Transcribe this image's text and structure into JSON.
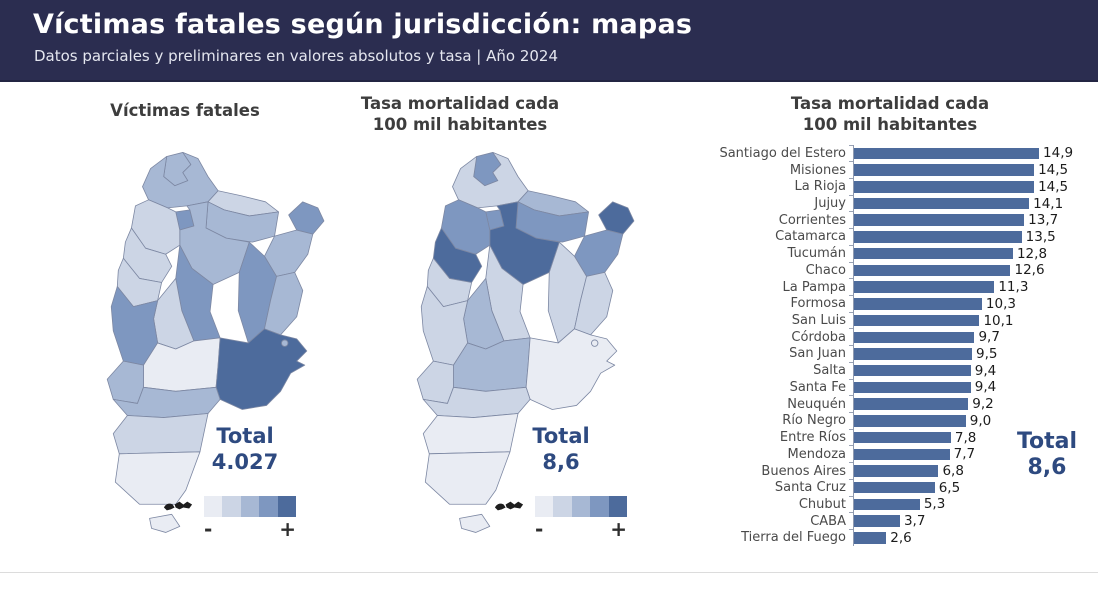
{
  "header": {
    "title": "Víctimas fatales según jurisdicción: mapas",
    "subtitle": "Datos parciales y preliminares en valores absolutos y tasa | Año 2024"
  },
  "colors": {
    "header_bg": "#2b2d50",
    "total_text": "#2e4a80",
    "bar_fill": "#4d6b9c",
    "choropleth_palette": [
      "#e9ecf3",
      "#ccd5e5",
      "#a7b8d4",
      "#7e97c0",
      "#4d6b9c"
    ]
  },
  "panel_map_absolute": {
    "title": "Víctimas fatales",
    "total_label": "Total",
    "total_value": "4.027",
    "legend_minus": "-",
    "legend_plus": "+"
  },
  "panel_map_rate": {
    "title_line1": "Tasa mortalidad cada",
    "title_line2": "100 mil habitantes",
    "total_label": "Total",
    "total_value": "8,6",
    "legend_minus": "-",
    "legend_plus": "+"
  },
  "panel_bars": {
    "title_line1": "Tasa mortalidad cada",
    "title_line2": "100 mil habitantes",
    "total_label": "Total",
    "total_value": "8,6"
  },
  "chart_data": [
    {
      "type": "heatmap",
      "subtype": "choropleth-map",
      "region": "Argentina (24 jurisdicciones)",
      "title": "Víctimas fatales",
      "unit": "valores absolutos",
      "total": 4027,
      "legend": "escala de color de - (claro) a + (oscuro), 5 niveles",
      "shade_levels_1to5": {
        "Jujuy": 3,
        "Salta": 3,
        "Formosa": 2,
        "Chaco": 3,
        "Misiones": 4,
        "Corrientes": 3,
        "Tucumán": 4,
        "Santiago del Estero": 3,
        "Catamarca": 2,
        "La Rioja": 2,
        "San Juan": 2,
        "Córdoba": 4,
        "Santa Fe": 4,
        "Entre Ríos": 3,
        "San Luis": 2,
        "Mendoza": 4,
        "La Pampa": 1,
        "Buenos Aires": 5,
        "CABA": 3,
        "Neuquén": 3,
        "Río Negro": 3,
        "Chubut": 2,
        "Santa Cruz": 1,
        "Tierra del Fuego": 1
      }
    },
    {
      "type": "heatmap",
      "subtype": "choropleth-map",
      "region": "Argentina (24 jurisdicciones)",
      "title": "Tasa mortalidad cada 100 mil habitantes",
      "unit": "tasa cada 100 mil habitantes",
      "total": 8.6,
      "legend": "escala de color de - (claro) a + (oscuro), 5 niveles",
      "shade_levels_1to5": {
        "Jujuy": 4,
        "Salta": 2,
        "Formosa": 3,
        "Chaco": 4,
        "Misiones": 5,
        "Corrientes": 4,
        "Tucumán": 4,
        "Santiago del Estero": 5,
        "Catamarca": 4,
        "La Rioja": 5,
        "San Juan": 2,
        "Córdoba": 2,
        "Santa Fe": 2,
        "Entre Ríos": 2,
        "San Luis": 3,
        "Mendoza": 2,
        "La Pampa": 3,
        "Buenos Aires": 1,
        "CABA": 1,
        "Neuquén": 2,
        "Río Negro": 2,
        "Chubut": 1,
        "Santa Cruz": 1,
        "Tierra del Fuego": 1
      }
    },
    {
      "type": "bar",
      "orientation": "horizontal",
      "title": "Tasa mortalidad cada 100 mil habitantes",
      "xlabel": "",
      "ylabel": "",
      "xlim": [
        0,
        15
      ],
      "grid": false,
      "total_label": "Total",
      "total_value": "8,6",
      "categories": [
        "Santiago del Estero",
        "Misiones",
        "La Rioja",
        "Jujuy",
        "Corrientes",
        "Catamarca",
        "Tucumán",
        "Chaco",
        "La Pampa",
        "Formosa",
        "San Luis",
        "Córdoba",
        "San Juan",
        "Salta",
        "Santa Fe",
        "Neuquén",
        "Río Negro",
        "Entre Ríos",
        "Mendoza",
        "Buenos Aires",
        "Santa Cruz",
        "Chubut",
        "CABA",
        "Tierra del Fuego"
      ],
      "values": [
        14.9,
        14.5,
        14.5,
        14.1,
        13.7,
        13.5,
        12.8,
        12.6,
        11.3,
        10.3,
        10.1,
        9.7,
        9.5,
        9.4,
        9.4,
        9.2,
        9.0,
        7.8,
        7.7,
        6.8,
        6.5,
        5.3,
        3.7,
        2.6
      ],
      "value_labels": [
        "14,9",
        "14,5",
        "14,5",
        "14,1",
        "13,7",
        "13,5",
        "12,8",
        "12,6",
        "11,3",
        "10,3",
        "10,1",
        "9,7",
        "9,5",
        "9,4",
        "9,4",
        "9,2",
        "9,0",
        "7,8",
        "7,7",
        "6,8",
        "6,5",
        "5,3",
        "3,7",
        "2,6"
      ]
    }
  ]
}
